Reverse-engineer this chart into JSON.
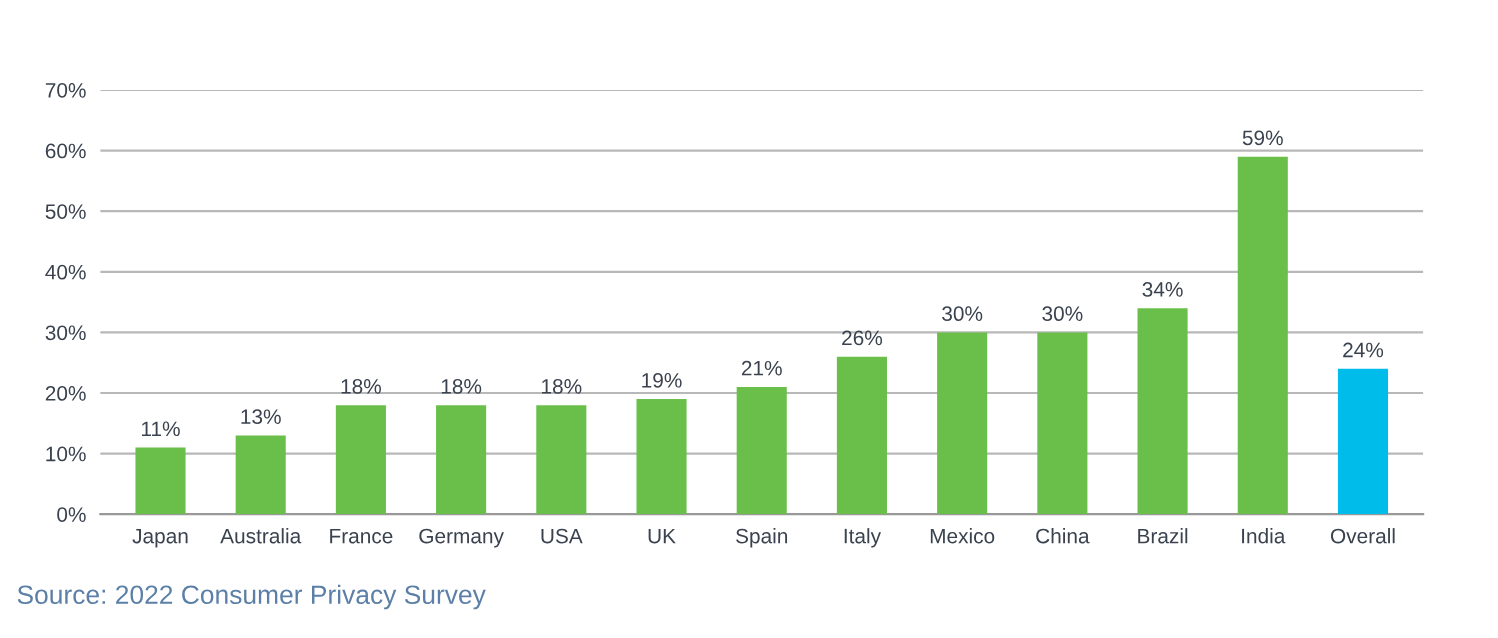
{
  "chart_data": {
    "type": "bar",
    "categories": [
      "Japan",
      "Australia",
      "France",
      "Germany",
      "USA",
      "UK",
      "Spain",
      "Italy",
      "Mexico",
      "China",
      "Brazil",
      "India",
      "Overall"
    ],
    "values": [
      11,
      13,
      18,
      18,
      18,
      19,
      21,
      26,
      30,
      30,
      34,
      59,
      24
    ],
    "colors": [
      "#6abf4b",
      "#6abf4b",
      "#6abf4b",
      "#6abf4b",
      "#6abf4b",
      "#6abf4b",
      "#6abf4b",
      "#6abf4b",
      "#6abf4b",
      "#6abf4b",
      "#6abf4b",
      "#6abf4b",
      "#00bceb"
    ],
    "value_labels": [
      "11%",
      "13%",
      "18%",
      "18%",
      "18%",
      "19%",
      "21%",
      "26%",
      "30%",
      "30%",
      "34%",
      "59%",
      "24%"
    ],
    "ylim": [
      0,
      70
    ],
    "yticks": [
      {
        "value": 0,
        "label": "0%"
      },
      {
        "value": 10,
        "label": "10%"
      },
      {
        "value": 20,
        "label": "20%"
      },
      {
        "value": 30,
        "label": "30%"
      },
      {
        "value": 40,
        "label": "40%"
      },
      {
        "value": 50,
        "label": "50%"
      },
      {
        "value": 60,
        "label": "60%"
      },
      {
        "value": 70,
        "label": "70%"
      }
    ],
    "grid": "y",
    "annotations": [
      "Source: 2022 Consumer Privacy Survey"
    ]
  }
}
